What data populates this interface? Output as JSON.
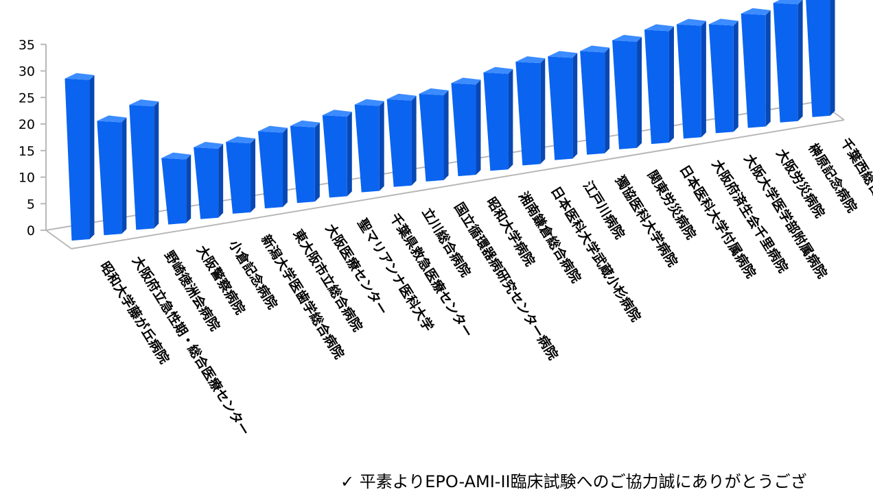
{
  "chart_data": {
    "type": "bar",
    "title": "",
    "xlabel": "",
    "ylabel": "",
    "ylim": [
      0,
      35
    ],
    "yticks": [
      0,
      5,
      10,
      15,
      20,
      25,
      30,
      35
    ],
    "grid": false,
    "legend": "none",
    "bar_color": "#0a64f0",
    "categories": [
      "昭和大学藤が丘病院",
      "大阪府立急性期・総合医療センター",
      "野崎徳洲会病院",
      "大阪警察病院",
      "小倉記念病院",
      "新潟大学医歯学総合病院",
      "東大阪市立総合病院",
      "大阪医療センター",
      "聖マリアンナ医科大学",
      "千葉県救急医療センター",
      "立川総合病院",
      "国立循環器病研究センター病院",
      "昭和大学病院",
      "湘南鎌倉総合病院",
      "日本医科大学武蔵小杉病院",
      "江戸川病院",
      "獨協医科大学病院",
      "関東労災病院",
      "日本医科大学付属病院",
      "大阪府済生会千里病院",
      "大阪大学医学部附属病院",
      "大阪労災病院",
      "榊原記念病院",
      "千葉西総合病院"
    ],
    "values": [
      30,
      21,
      23,
      12,
      13,
      13,
      14,
      14,
      15,
      16,
      16,
      16,
      17,
      18,
      19,
      19,
      19,
      20,
      21,
      21,
      20,
      21,
      22,
      23
    ]
  },
  "note": "✓ 平素よりEPO-AMI-II臨床試験へのご協力誠にありがとうござ"
}
